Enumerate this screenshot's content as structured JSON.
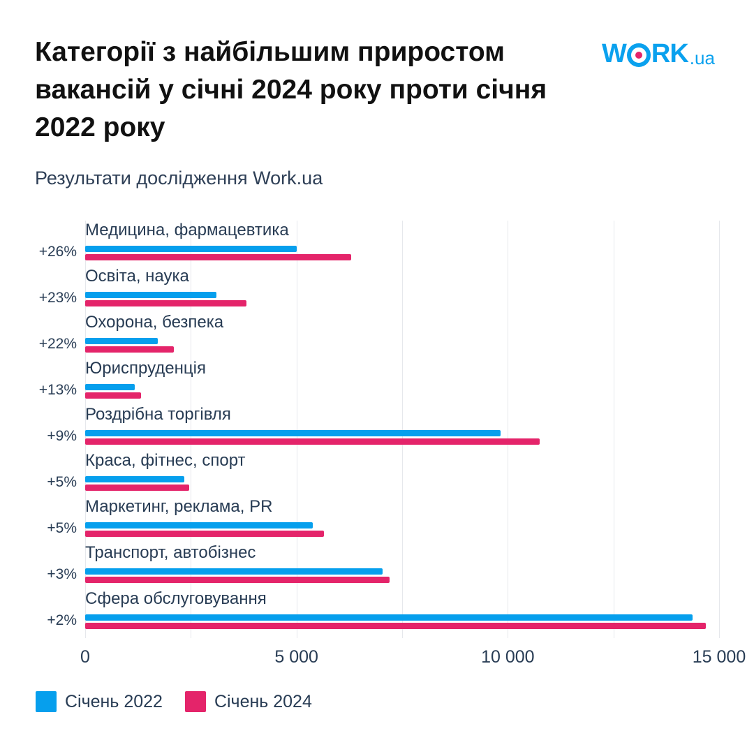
{
  "header": {
    "title": "Категорії з найбільшим приростом вакансій у січні 2024 року проти січня 2022 року",
    "subtitle": "Результати дослідження Work.ua",
    "logo": {
      "text_main": "W",
      "text_o": "O",
      "text_rest": "RK",
      "text_suffix": ".ua",
      "icon": "workua-logo"
    }
  },
  "legend": [
    {
      "label": "Січень 2022",
      "color": "#069fed"
    },
    {
      "label": "Січень 2024",
      "color": "#e4246a"
    }
  ],
  "axis": {
    "ticks": [
      "0",
      "5 000",
      "10 000",
      "15 000"
    ],
    "tick_values": [
      0,
      5000,
      10000,
      15000
    ]
  },
  "rows": [
    {
      "category": "Медицина, фармацевтика",
      "growth": "+26%"
    },
    {
      "category": "Освіта, наука",
      "growth": "+23%"
    },
    {
      "category": "Охорона, безпека",
      "growth": "+22%"
    },
    {
      "category": "Юриспруденція",
      "growth": "+13%"
    },
    {
      "category": "Роздрібна торгівля",
      "growth": "+9%"
    },
    {
      "category": "Краса, фітнес, спорт",
      "growth": "+5%"
    },
    {
      "category": "Маркетинг, реклама, PR",
      "growth": "+5%"
    },
    {
      "category": "Транспорт, автобізнес",
      "growth": "+3%"
    },
    {
      "category": "Сфера обслуговування",
      "growth": "+2%"
    }
  ],
  "chart_data": {
    "type": "bar",
    "orientation": "horizontal",
    "title": "Категорії з найбільшим приростом вакансій у січні 2024 року проти січня 2022 року",
    "subtitle": "Результати дослідження Work.ua",
    "categories": [
      "Медицина, фармацевтика",
      "Освіта, наука",
      "Охорона, безпека",
      "Юриспруденція",
      "Роздрібна торгівля",
      "Краса, фітнес, спорт",
      "Маркетинг, реклама, PR",
      "Транспорт, автобізнес",
      "Сфера обслуговування"
    ],
    "growth_labels": [
      "+26%",
      "+23%",
      "+22%",
      "+13%",
      "+9%",
      "+5%",
      "+5%",
      "+3%",
      "+2%"
    ],
    "series": [
      {
        "name": "Січень 2022",
        "color": "#069fed",
        "values": [
          5000,
          3100,
          1720,
          1170,
          9830,
          2340,
          5380,
          7030,
          14380
        ]
      },
      {
        "name": "Січень 2024",
        "color": "#e4246a",
        "values": [
          6300,
          3820,
          2100,
          1320,
          10760,
          2460,
          5650,
          7200,
          14680
        ]
      }
    ],
    "xlabel": "",
    "ylabel": "",
    "xlim": [
      0,
      15000
    ],
    "xticks": [
      0,
      5000,
      10000,
      15000
    ],
    "grid": true,
    "legend_position": "bottom-left"
  }
}
